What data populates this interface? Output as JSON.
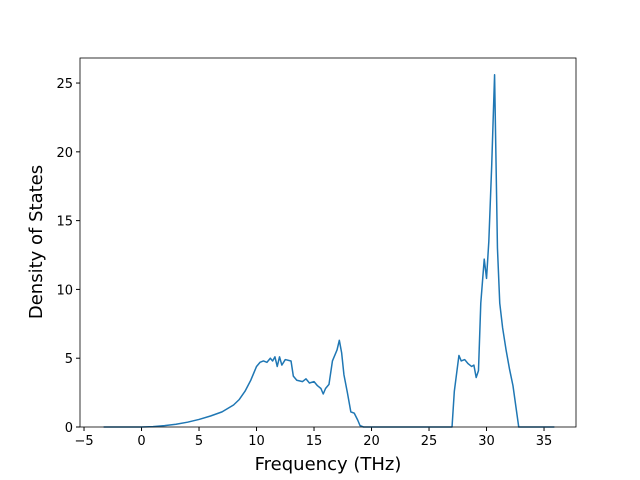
{
  "chart_data": {
    "type": "line",
    "x_label": "Frequency (THz)",
    "y_label": "Density of States",
    "xlim": [
      -5.35,
      37.78
    ],
    "ylim": [
      0,
      26.82
    ],
    "xticks": [
      {
        "value": -5,
        "label": "−5"
      },
      0,
      5,
      10,
      15,
      20,
      25,
      30,
      35
    ],
    "yticks": [
      0,
      5,
      10,
      15,
      20,
      25
    ],
    "series": [
      {
        "color": "#1f77b4",
        "x": [
          -3.3,
          -2,
          -1,
          0,
          1,
          2,
          3,
          4,
          5,
          6,
          7,
          8,
          8.5,
          9,
          9.5,
          10,
          10.3,
          10.6,
          10.9,
          11.2,
          11.4,
          11.6,
          11.8,
          12,
          12.2,
          12.5,
          13,
          13.2,
          13.5,
          14,
          14.3,
          14.6,
          15,
          15.3,
          15.6,
          15.8,
          16,
          16.3,
          16.6,
          17,
          17.2,
          17.4,
          17.6,
          17.9,
          18.2,
          18.5,
          18.8,
          19,
          19.3,
          20,
          25,
          27,
          27.2,
          27.6,
          27.8,
          28.1,
          28.4,
          28.7,
          28.9,
          29.1,
          29.3,
          29.5,
          29.8,
          30,
          30.2,
          30.45,
          30.7,
          30.95,
          31.15,
          31.4,
          31.7,
          32,
          32.3,
          32.6,
          32.8,
          33,
          35,
          35.9
        ],
        "values": [
          0,
          0,
          0,
          0,
          0.03,
          0.1,
          0.2,
          0.35,
          0.55,
          0.8,
          1.1,
          1.6,
          2.0,
          2.6,
          3.4,
          4.4,
          4.7,
          4.8,
          4.7,
          5.0,
          4.8,
          5.1,
          4.4,
          5.1,
          4.5,
          4.9,
          4.8,
          3.7,
          3.4,
          3.3,
          3.5,
          3.2,
          3.3,
          3.0,
          2.8,
          2.4,
          2.8,
          3.1,
          4.8,
          5.6,
          6.3,
          5.4,
          3.8,
          2.5,
          1.1,
          1.0,
          0.5,
          0.1,
          0,
          0,
          0,
          0,
          2.6,
          5.2,
          4.8,
          4.9,
          4.6,
          4.4,
          4.5,
          3.6,
          4.1,
          9.0,
          12.2,
          10.8,
          13.5,
          19,
          25.6,
          13,
          9.0,
          7.2,
          5.6,
          4.2,
          3.0,
          1.2,
          0,
          0,
          0,
          0
        ]
      }
    ]
  }
}
